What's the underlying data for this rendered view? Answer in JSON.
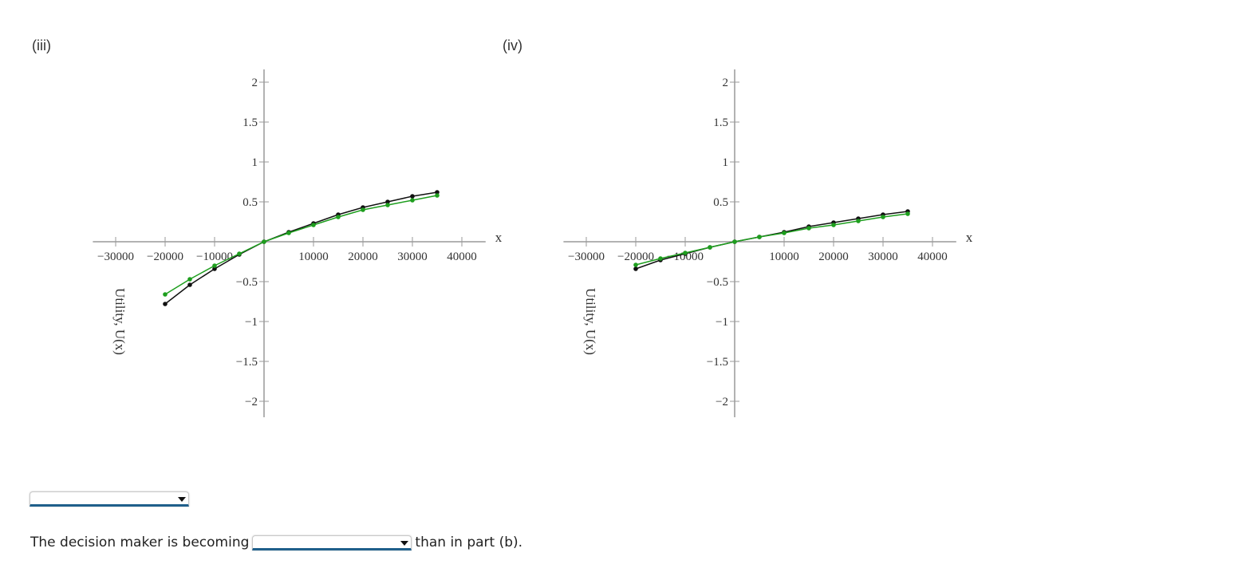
{
  "panels": [
    {
      "label": "(iii)"
    },
    {
      "label": "(iv)"
    }
  ],
  "question": {
    "prefix": "The decision maker is becoming",
    "suffix": "than in part (b).",
    "dropdown_value": ""
  },
  "first_dropdown": {
    "value": ""
  },
  "colors": {
    "black_series": "#111111",
    "green_series": "#1e9e1e",
    "axis": "#999999"
  },
  "chart_data": [
    {
      "type": "line",
      "title": "(iii)",
      "xlabel": "x",
      "ylabel": "Utility, U(x)",
      "xlim": [
        -33000,
        44000
      ],
      "ylim": [
        -2.2,
        2.2
      ],
      "xticks": [
        -30000,
        -20000,
        -10000,
        10000,
        20000,
        30000,
        40000
      ],
      "xtick_labels": [
        "−30000",
        "−20000",
        "−10000",
        "10000",
        "20000",
        "30000",
        "40000"
      ],
      "yticks": [
        2,
        1.5,
        1,
        0.5,
        -0.5,
        -1,
        -1.5,
        -2
      ],
      "ytick_labels": [
        "2",
        "1.5",
        "1",
        "0.5",
        "−0.5",
        "−1",
        "−1.5",
        "−2"
      ],
      "grid": false,
      "x": [
        -20000,
        -15000,
        -10000,
        -5000,
        0,
        5000,
        10000,
        15000,
        20000,
        25000,
        30000,
        35000
      ],
      "series": [
        {
          "name": "black",
          "color": "#111111",
          "values": [
            -0.78,
            -0.54,
            -0.34,
            -0.16,
            0,
            0.12,
            0.23,
            0.34,
            0.43,
            0.5,
            0.57,
            0.62
          ]
        },
        {
          "name": "green",
          "color": "#1e9e1e",
          "values": [
            -0.66,
            -0.47,
            -0.3,
            -0.15,
            0,
            0.11,
            0.21,
            0.31,
            0.4,
            0.46,
            0.52,
            0.58
          ]
        }
      ]
    },
    {
      "type": "line",
      "title": "(iv)",
      "xlabel": "x",
      "ylabel": "Utility, U(x)",
      "xlim": [
        -33000,
        44000
      ],
      "ylim": [
        -2.2,
        2.2
      ],
      "xticks": [
        -30000,
        -20000,
        -10000,
        10000,
        20000,
        30000,
        40000
      ],
      "xtick_labels": [
        "−30000",
        "−20000",
        "−10000",
        "10000",
        "20000",
        "30000",
        "40000"
      ],
      "yticks": [
        2,
        1.5,
        1,
        0.5,
        -0.5,
        -1,
        -1.5,
        -2
      ],
      "ytick_labels": [
        "2",
        "1.5",
        "1",
        "0.5",
        "−0.5",
        "−1",
        "−1.5",
        "−2"
      ],
      "grid": false,
      "x": [
        -20000,
        -15000,
        -10000,
        -5000,
        0,
        5000,
        10000,
        15000,
        20000,
        25000,
        30000,
        35000
      ],
      "series": [
        {
          "name": "black",
          "color": "#111111",
          "values": [
            -0.34,
            -0.23,
            -0.15,
            -0.07,
            0,
            0.06,
            0.12,
            0.19,
            0.24,
            0.29,
            0.34,
            0.38
          ]
        },
        {
          "name": "green",
          "color": "#1e9e1e",
          "values": [
            -0.29,
            -0.21,
            -0.14,
            -0.07,
            0,
            0.06,
            0.11,
            0.17,
            0.21,
            0.26,
            0.31,
            0.35
          ]
        }
      ]
    }
  ]
}
